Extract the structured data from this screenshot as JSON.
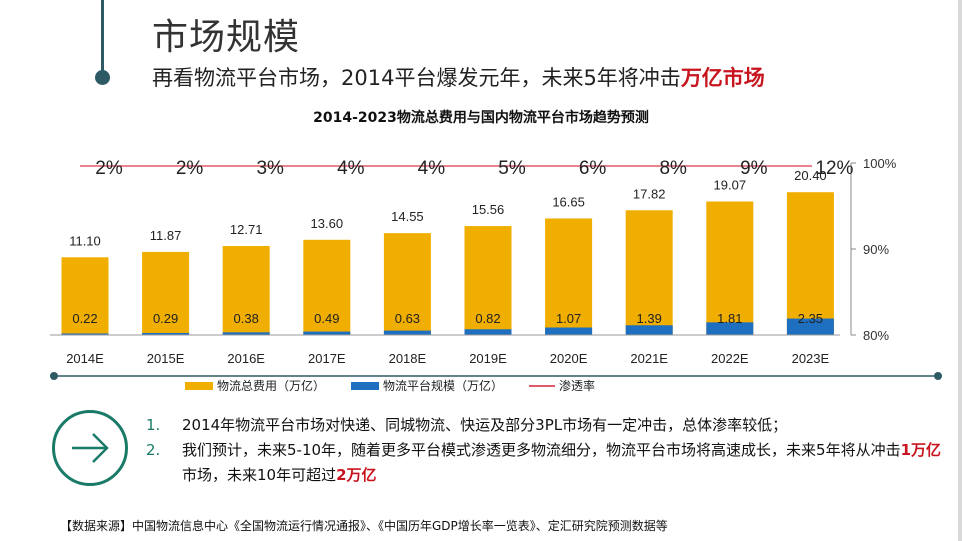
{
  "slide": {
    "title": "市场规模",
    "subtitle_pre": "再看物流平台市场，2014平台爆发元年，未来5年将冲击",
    "subtitle_hl": "万亿市场",
    "chart_title": "2014-2023物流总费用与国内物流平台市场趋势预测",
    "notes": [
      {
        "num": "1.",
        "text": "2014年物流平台市场对快递、同城物流、快运及部分3PL市场有一定冲击，总体渗率较低；"
      },
      {
        "num": "2.",
        "pre": "我们预计，未来5-10年，随着更多平台模式渗透更多物流细分，物流平台市场将高速成长，未来5年将从冲击",
        "hl1": "1万亿",
        "mid": "市场，未来10年可超过",
        "hl2": "2万亿"
      }
    ],
    "source": "【数据来源】中国物流信息中心《全国物流运行情况通报》、《中国历年GDP增长率一览表》、定汇研究院预测数据等",
    "icon": "arrow-right-circle-icon"
  },
  "chart_data": {
    "type": "bar",
    "categories": [
      "2014E",
      "2015E",
      "2016E",
      "2017E",
      "2018E",
      "2019E",
      "2020E",
      "2021E",
      "2022E",
      "2023E"
    ],
    "series": [
      {
        "name": "物流总费用（万亿）",
        "values": [
          11.1,
          11.87,
          12.71,
          13.6,
          14.55,
          15.56,
          16.65,
          17.82,
          19.07,
          20.4
        ],
        "labels": [
          "11.10",
          "11.87",
          "12.71",
          "13.60",
          "14.55",
          "15.56",
          "16.65",
          "17.82",
          "19.07",
          "20.40"
        ],
        "color": "#f0ae00"
      },
      {
        "name": "物流平台规模（万亿）",
        "values": [
          0.22,
          0.29,
          0.38,
          0.49,
          0.63,
          0.82,
          1.07,
          1.39,
          1.81,
          2.35
        ],
        "labels": [
          "0.22",
          "0.29",
          "0.38",
          "0.49",
          "0.63",
          "0.82",
          "1.07",
          "1.39",
          "1.81",
          "2.35"
        ],
        "color": "#1f6fc0"
      },
      {
        "name": "渗透率",
        "values": [
          "2%",
          "2%",
          "3%",
          "4%",
          "4%",
          "5%",
          "6%",
          "8%",
          "9%",
          "12%"
        ],
        "color": "#e05a6a"
      }
    ],
    "y2_ticks": [
      "100%",
      "90%",
      "80%"
    ],
    "legend": "bottom"
  }
}
